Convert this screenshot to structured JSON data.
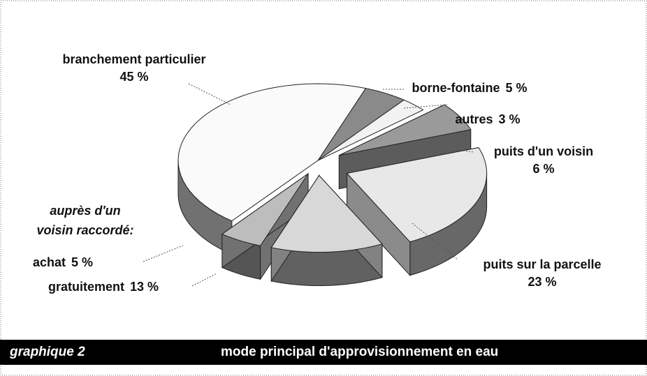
{
  "chart_data": {
    "type": "pie",
    "chart_number": "graphique 2",
    "title": "mode principal d'approvisionnement en eau",
    "group_label": "auprès d'un voisin raccordé:",
    "categories": [
      "borne-fontaine",
      "autres",
      "puits d'un voisin",
      "puits sur la parcelle",
      "gratuitement",
      "achat",
      "branchement particulier"
    ],
    "values": [
      5,
      3,
      6,
      23,
      13,
      5,
      45
    ],
    "value_labels": [
      "5 %",
      "3 %",
      "6 %",
      "23 %",
      "13 %",
      "5 %",
      "45 %"
    ],
    "colors": [
      "#8a8a8a",
      "#f2f2f2",
      "#9a9a9a",
      "#e8e8e8",
      "#d8d8d8",
      "#bdbdbd",
      "#fafafa"
    ]
  }
}
